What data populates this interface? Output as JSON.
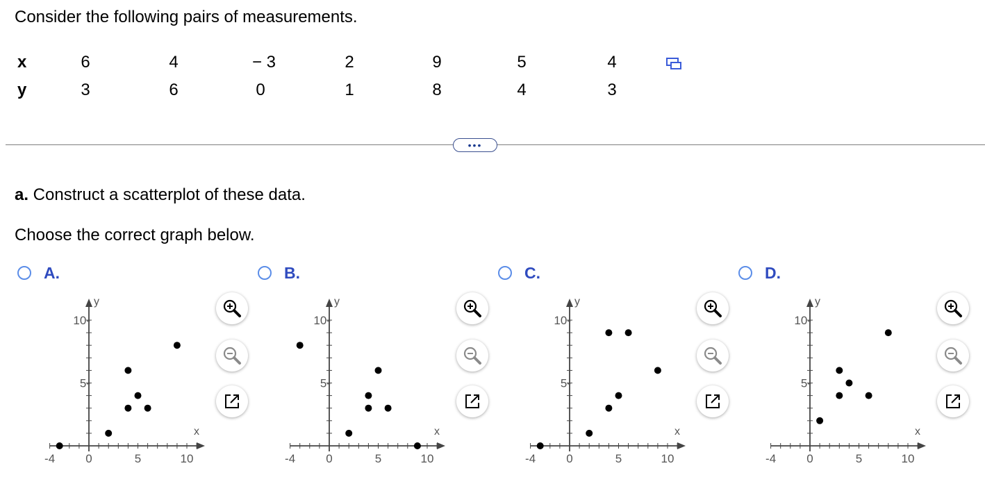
{
  "intro_text": "Consider the following pairs of measurements.",
  "table": {
    "x_label": "x",
    "y_label": "y",
    "x_values": [
      "6",
      "4",
      "− 3",
      "2",
      "9",
      "5",
      "4"
    ],
    "y_values": [
      "3",
      "6",
      "0",
      "1",
      "8",
      "4",
      "3"
    ]
  },
  "more_label": "•••",
  "part_a": {
    "letter": "a.",
    "text": " Construct a scatterplot of these data."
  },
  "choose_text": "Choose the correct graph below.",
  "colors": {
    "accent": "#2f4bbf",
    "radio": "#5b8de8",
    "axis": "#444444"
  },
  "options": [
    {
      "letter": "A.",
      "points": [
        [
          -3,
          0
        ],
        [
          2,
          1
        ],
        [
          4,
          3
        ],
        [
          4,
          6
        ],
        [
          5,
          4
        ],
        [
          6,
          3
        ],
        [
          9,
          8
        ]
      ]
    },
    {
      "letter": "B.",
      "points": [
        [
          -3,
          8
        ],
        [
          2,
          1
        ],
        [
          4,
          3
        ],
        [
          4,
          4
        ],
        [
          5,
          6
        ],
        [
          6,
          3
        ],
        [
          9,
          0
        ]
      ]
    },
    {
      "letter": "C.",
      "points": [
        [
          -3,
          0
        ],
        [
          2,
          1
        ],
        [
          4,
          3
        ],
        [
          4,
          9
        ],
        [
          5,
          4
        ],
        [
          6,
          9
        ],
        [
          9,
          6
        ]
      ]
    },
    {
      "letter": "D.",
      "points": [
        [
          1,
          2
        ],
        [
          3,
          4
        ],
        [
          3,
          6
        ],
        [
          4,
          5
        ],
        [
          6,
          4
        ],
        [
          8,
          9
        ]
      ]
    }
  ],
  "chart_data": [
    {
      "type": "scatter",
      "title": "A.",
      "xlabel": "x",
      "ylabel": "y",
      "xlim": [
        -4,
        12
      ],
      "ylim": [
        0,
        11
      ],
      "x_ticks": [
        "-4",
        "0",
        "5",
        "10"
      ],
      "y_ticks": [
        "5-",
        "10-"
      ],
      "x": [
        -3,
        2,
        4,
        4,
        5,
        6,
        9
      ],
      "y": [
        0,
        1,
        3,
        6,
        4,
        3,
        8
      ]
    },
    {
      "type": "scatter",
      "title": "B.",
      "xlabel": "x",
      "ylabel": "y",
      "xlim": [
        -4,
        12
      ],
      "ylim": [
        0,
        11
      ],
      "x_ticks": [
        "-4",
        "0",
        "5",
        "10"
      ],
      "y_ticks": [
        "5-",
        "10-"
      ],
      "x": [
        -3,
        2,
        4,
        4,
        5,
        6,
        9
      ],
      "y": [
        8,
        1,
        3,
        4,
        6,
        3,
        0
      ]
    },
    {
      "type": "scatter",
      "title": "C.",
      "xlabel": "x",
      "ylabel": "y",
      "xlim": [
        -4,
        12
      ],
      "ylim": [
        0,
        11
      ],
      "x_ticks": [
        "-4",
        "0",
        "5",
        "10"
      ],
      "y_ticks": [
        "5-",
        "10-"
      ],
      "x": [
        -3,
        2,
        4,
        4,
        5,
        6,
        9
      ],
      "y": [
        0,
        1,
        3,
        9,
        4,
        9,
        6
      ]
    },
    {
      "type": "scatter",
      "title": "D.",
      "xlabel": "x",
      "ylabel": "y",
      "xlim": [
        -4,
        12
      ],
      "ylim": [
        0,
        11
      ],
      "x_ticks": [
        "-4",
        "0",
        "5",
        "10"
      ],
      "y_ticks": [
        "5-",
        "10-"
      ],
      "x": [
        1,
        3,
        3,
        4,
        6,
        8
      ],
      "y": [
        2,
        4,
        6,
        5,
        4,
        9
      ]
    }
  ],
  "tools": {
    "zoom_in": "zoom-in-icon",
    "zoom_out": "zoom-out-icon",
    "popout": "popout-icon"
  }
}
